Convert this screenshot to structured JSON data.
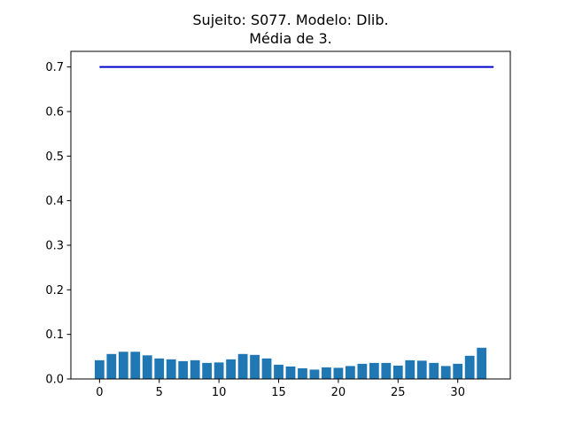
{
  "chart_data": {
    "type": "bar",
    "title_line1": "Sujeito: S077. Modelo: Dlib.",
    "title_line2": "Média de 3.",
    "xlabel": "",
    "ylabel": "",
    "x": [
      0,
      1,
      2,
      3,
      4,
      5,
      6,
      7,
      8,
      9,
      10,
      11,
      12,
      13,
      14,
      15,
      16,
      17,
      18,
      19,
      20,
      21,
      22,
      23,
      24,
      25,
      26,
      27,
      28,
      29,
      30,
      31,
      32
    ],
    "values": [
      0.042,
      0.056,
      0.061,
      0.061,
      0.053,
      0.046,
      0.044,
      0.04,
      0.042,
      0.036,
      0.037,
      0.044,
      0.056,
      0.054,
      0.046,
      0.032,
      0.028,
      0.024,
      0.021,
      0.026,
      0.025,
      0.029,
      0.034,
      0.036,
      0.036,
      0.03,
      0.042,
      0.041,
      0.036,
      0.029,
      0.034,
      0.052,
      0.07
    ],
    "bar_color": "#1f77b4",
    "threshold": {
      "y": 0.7,
      "x_start": 0,
      "x_end": 33,
      "color": "#0000cc"
    },
    "xlim": [
      -2.4,
      34.4
    ],
    "ylim": [
      0,
      0.735
    ],
    "xticks": [
      0,
      5,
      10,
      15,
      20,
      25,
      30
    ],
    "xtick_labels": [
      "0",
      "5",
      "10",
      "15",
      "20",
      "25",
      "30"
    ],
    "yticks": [
      0.0,
      0.1,
      0.2,
      0.3,
      0.4,
      0.5,
      0.6,
      0.7
    ],
    "ytick_labels": [
      "0.0",
      "0.1",
      "0.2",
      "0.3",
      "0.4",
      "0.5",
      "0.6",
      "0.7"
    ],
    "grid": false,
    "legend": "none"
  }
}
